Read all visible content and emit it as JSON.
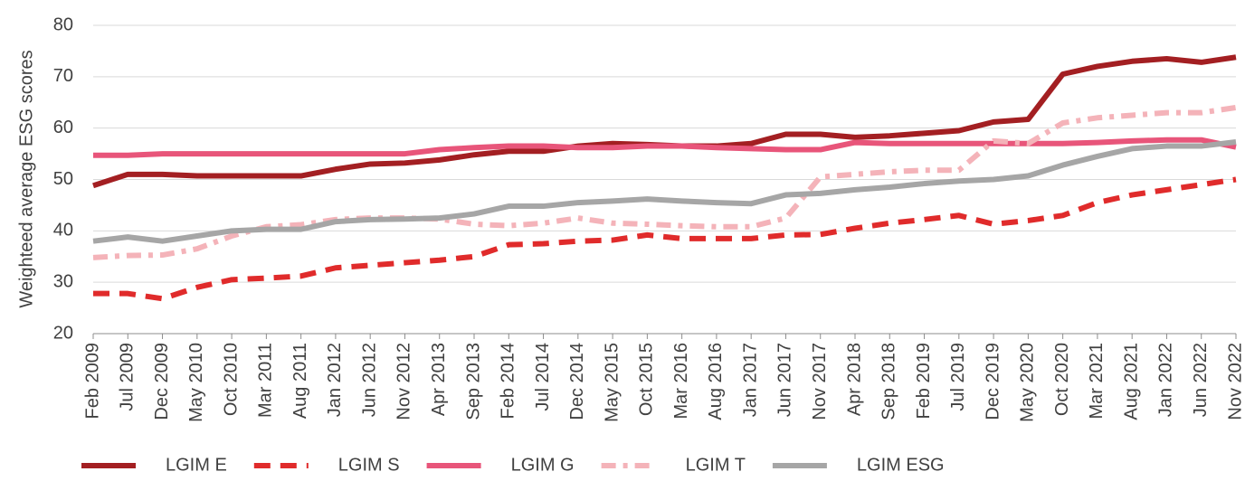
{
  "chart_data": {
    "type": "line",
    "y_label": "Weighteed average ESG scores",
    "categories": [
      "Feb 2009",
      "Jul 2009",
      "Dec 2009",
      "May 2010",
      "Oct 2010",
      "Mar 2011",
      "Aug 2011",
      "Jan 2012",
      "Jun 2012",
      "Nov 2012",
      "Apr 2013",
      "Sep 2013",
      "Feb 2014",
      "Jul 2014",
      "Dec 2014",
      "May 2015",
      "Oct 2015",
      "Mar 2016",
      "Aug 2016",
      "Jan 2017",
      "Jun 2017",
      "Nov 2017",
      "Apr 2018",
      "Sep 2018",
      "Feb 2019",
      "Jul 2019",
      "Dec 2019",
      "May 2020",
      "Oct 2020",
      "Mar 2021",
      "Aug 2021",
      "Jan 2022",
      "Jun 2022",
      "Nov 2022"
    ],
    "series": [
      {
        "name": "LGIM E",
        "color": "#a31f22",
        "dashed": false,
        "values": [
          48.8,
          51,
          51,
          50.7,
          50.7,
          50.7,
          50.7,
          52,
          53,
          53.2,
          53.8,
          54.8,
          55.5,
          55.5,
          56.5,
          57,
          56.8,
          56.5,
          56.5,
          57,
          58.8,
          58.8,
          58.2,
          58.5,
          59,
          59.5,
          61.2,
          61.7,
          70.5,
          72,
          73,
          73.5,
          72.8,
          73.8
        ]
      },
      {
        "name": "LGIM S",
        "color": "#e02b2b",
        "dashed": true,
        "values": [
          27.8,
          27.8,
          26.8,
          29,
          30.5,
          30.8,
          31.2,
          32.8,
          33.3,
          33.8,
          34.3,
          35,
          37.3,
          37.5,
          38,
          38.2,
          39.2,
          38.5,
          38.5,
          38.5,
          39.2,
          39.3,
          40.5,
          41.5,
          42.2,
          43,
          41.3,
          42,
          43,
          45.5,
          47,
          48,
          49,
          50
        ]
      },
      {
        "name": "LGIM G",
        "color": "#e8557a",
        "dashed": false,
        "values": [
          54.7,
          54.7,
          55,
          55,
          55,
          55,
          55,
          55,
          55,
          55,
          55.8,
          56.2,
          56.5,
          56.5,
          56.2,
          56.2,
          56.5,
          56.5,
          56.2,
          56,
          55.8,
          55.8,
          57.2,
          57,
          57,
          57,
          57,
          57,
          57,
          57.2,
          57.5,
          57.7,
          57.7,
          56.3
        ]
      },
      {
        "name": "LGIM T",
        "color": "#f4b3b9",
        "dashed": true,
        "values": [
          34.8,
          35.2,
          35.3,
          36.5,
          39,
          40.8,
          41.2,
          42.2,
          42.5,
          42.5,
          42.3,
          41.3,
          41,
          41.5,
          42.5,
          41.5,
          41.3,
          41,
          40.8,
          40.8,
          42.5,
          50.5,
          51,
          51.5,
          51.8,
          51.8,
          57.5,
          57,
          61,
          62,
          62.5,
          63,
          63,
          64
        ]
      },
      {
        "name": "LGIM ESG",
        "color": "#a6a6a6",
        "dashed": false,
        "values": [
          38,
          38.8,
          38,
          39,
          40,
          40.3,
          40.3,
          41.8,
          42.2,
          42.3,
          42.5,
          43.3,
          44.8,
          44.8,
          45.5,
          45.8,
          46.2,
          45.8,
          45.5,
          45.3,
          47,
          47.3,
          48,
          48.5,
          49.2,
          49.7,
          50,
          50.7,
          52.8,
          54.5,
          56,
          56.5,
          56.5,
          57.3
        ]
      }
    ],
    "ylim": [
      20,
      80
    ],
    "yticks": [
      20,
      30,
      40,
      50,
      60,
      70,
      80
    ],
    "grid": true,
    "legend": "bottom"
  }
}
